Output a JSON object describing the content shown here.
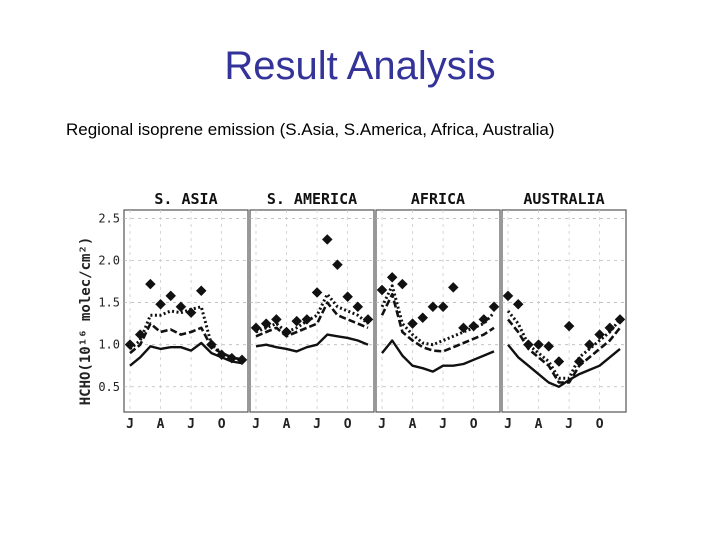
{
  "slide": {
    "title": "Result Analysis",
    "subtitle": "Regional isoprene emission (S.Asia, S.America, Africa, Australia)"
  },
  "chart_data": {
    "type": "line",
    "ylabel": "HCHO(10¹⁶ molec/cm²)",
    "ylim": [
      0.2,
      2.6
    ],
    "yticks": [
      0.5,
      1.0,
      1.5,
      2.0,
      2.5
    ],
    "ytick_labels": [
      "0.5",
      "1.0",
      "1.5",
      "2.0",
      "2.5"
    ],
    "grid": true,
    "panels": [
      {
        "name": "S. ASIA",
        "x_labels": [
          "J",
          "A",
          "J",
          "O"
        ],
        "series": [
          {
            "style": "solid",
            "values": [
              0.75,
              0.85,
              0.98,
              0.95,
              0.97,
              0.97,
              0.93,
              1.02,
              0.9,
              0.85,
              0.8,
              0.78
            ]
          },
          {
            "style": "dashed",
            "values": [
              0.9,
              1.0,
              1.25,
              1.15,
              1.18,
              1.12,
              1.15,
              1.2,
              0.97,
              0.9,
              0.85,
              0.82
            ]
          },
          {
            "style": "dotted",
            "values": [
              0.95,
              1.05,
              1.35,
              1.35,
              1.4,
              1.38,
              1.42,
              1.45,
              1.0,
              0.9,
              0.85,
              0.82
            ]
          },
          {
            "style": "diamond",
            "values": [
              1.0,
              1.12,
              1.72,
              1.48,
              1.58,
              1.45,
              1.38,
              1.64,
              1.0,
              0.88,
              0.84,
              0.82
            ]
          }
        ]
      },
      {
        "name": "S. AMERICA",
        "x_labels": [
          "J",
          "A",
          "J",
          "O"
        ],
        "series": [
          {
            "style": "solid",
            "values": [
              0.98,
              1.0,
              0.97,
              0.95,
              0.92,
              0.97,
              1.0,
              1.12,
              1.1,
              1.08,
              1.05,
              1.0
            ]
          },
          {
            "style": "dashed",
            "values": [
              1.1,
              1.15,
              1.2,
              1.1,
              1.15,
              1.2,
              1.25,
              1.5,
              1.35,
              1.3,
              1.25,
              1.2
            ]
          },
          {
            "style": "dotted",
            "values": [
              1.15,
              1.2,
              1.25,
              1.15,
              1.2,
              1.28,
              1.35,
              1.6,
              1.45,
              1.4,
              1.35,
              1.25
            ]
          },
          {
            "style": "diamond",
            "values": [
              1.2,
              1.25,
              1.3,
              1.15,
              1.28,
              1.3,
              1.62,
              2.25,
              1.95,
              1.57,
              1.45,
              1.3
            ]
          }
        ]
      },
      {
        "name": "AFRICA",
        "x_labels": [
          "J",
          "A",
          "J",
          "O"
        ],
        "series": [
          {
            "style": "solid",
            "values": [
              0.9,
              1.05,
              0.87,
              0.75,
              0.72,
              0.68,
              0.75,
              0.75,
              0.77,
              0.82,
              0.87,
              0.92
            ]
          },
          {
            "style": "dashed",
            "values": [
              1.35,
              1.6,
              1.15,
              1.05,
              0.97,
              0.93,
              0.92,
              0.97,
              1.02,
              1.07,
              1.12,
              1.2
            ]
          },
          {
            "style": "dotted",
            "values": [
              1.45,
              1.7,
              1.25,
              1.12,
              1.02,
              1.0,
              1.05,
              1.1,
              1.15,
              1.2,
              1.25,
              1.38
            ]
          },
          {
            "style": "diamond",
            "values": [
              1.65,
              1.8,
              1.72,
              1.25,
              1.32,
              1.45,
              1.45,
              1.68,
              1.2,
              1.22,
              1.3,
              1.45
            ]
          }
        ]
      },
      {
        "name": "AUSTRALIA",
        "x_labels": [
          "J",
          "A",
          "J",
          "O"
        ],
        "series": [
          {
            "style": "solid",
            "values": [
              1.0,
              0.85,
              0.75,
              0.65,
              0.55,
              0.5,
              0.58,
              0.65,
              0.7,
              0.75,
              0.85,
              0.95
            ]
          },
          {
            "style": "dashed",
            "values": [
              1.3,
              1.15,
              0.95,
              0.85,
              0.75,
              0.55,
              0.55,
              0.75,
              0.85,
              0.95,
              1.05,
              1.2
            ]
          },
          {
            "style": "dotted",
            "values": [
              1.4,
              1.25,
              1.0,
              0.9,
              0.8,
              0.6,
              0.6,
              0.85,
              0.95,
              1.05,
              1.15,
              1.3
            ]
          },
          {
            "style": "diamond",
            "values": [
              1.58,
              1.48,
              1.0,
              1.0,
              0.98,
              0.8,
              1.22,
              0.8,
              1.0,
              1.12,
              1.2,
              1.3
            ]
          }
        ]
      }
    ]
  }
}
